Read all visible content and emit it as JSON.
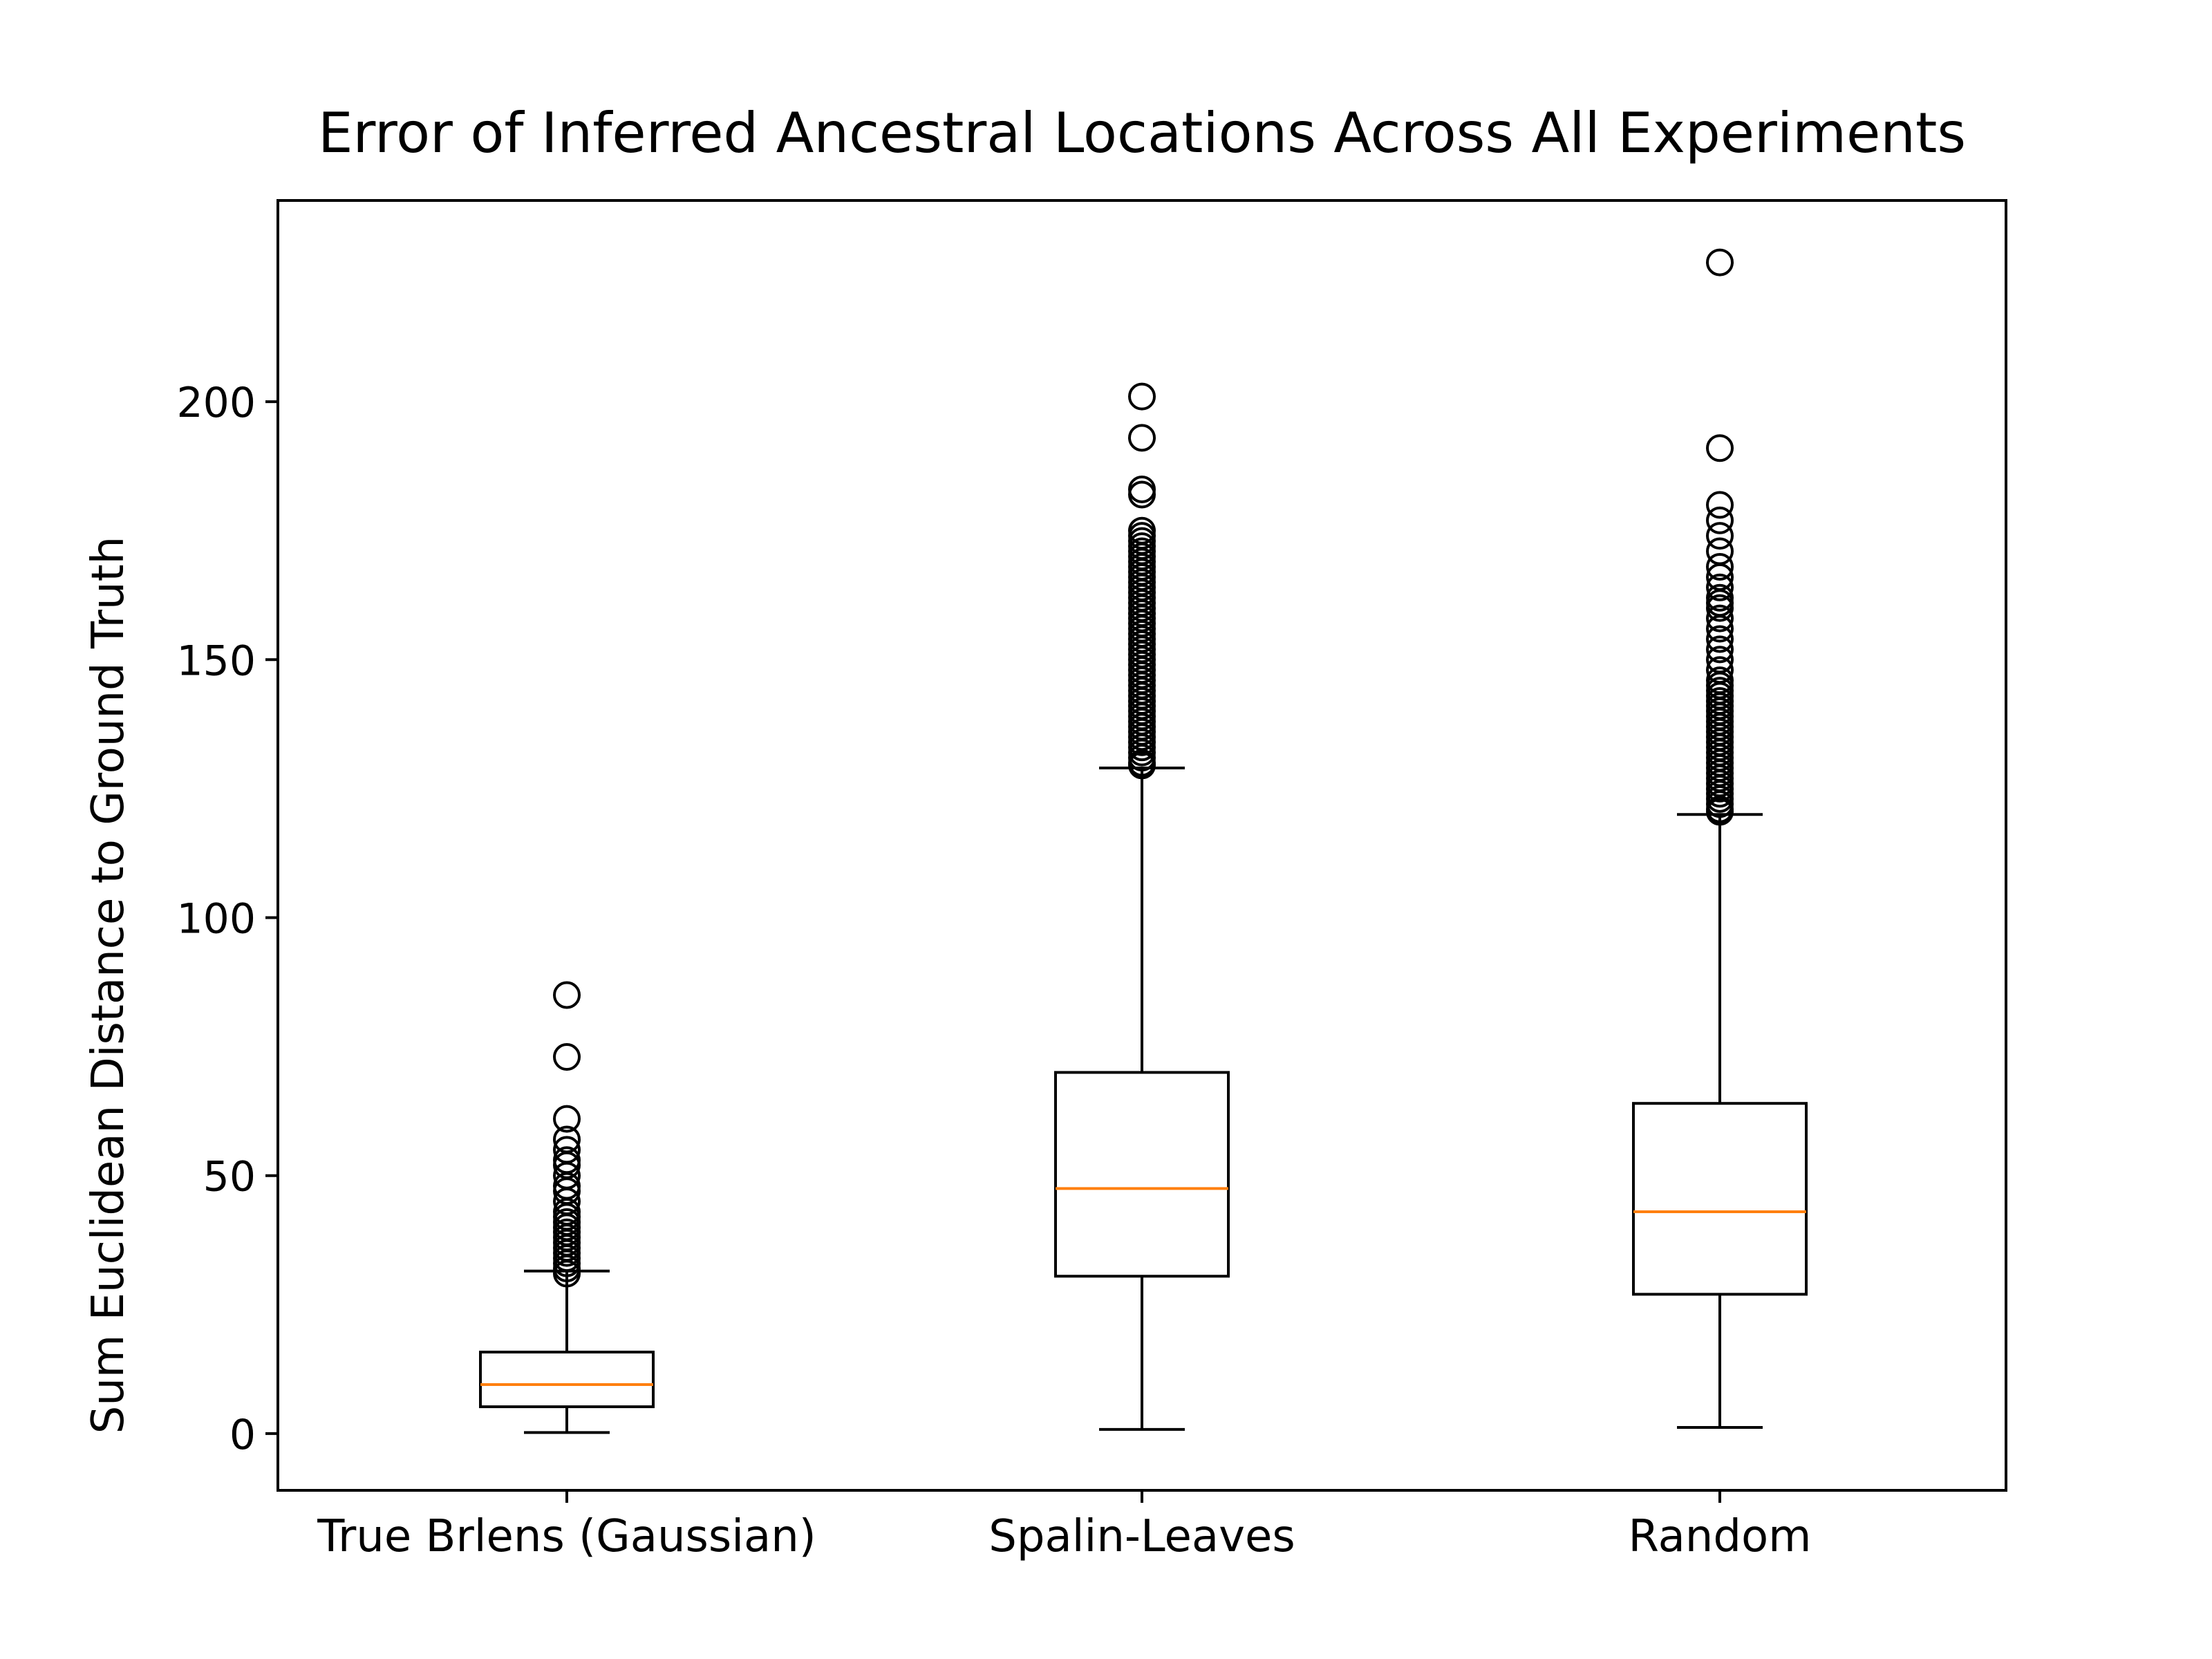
{
  "chart_data": {
    "type": "box",
    "title": "Error of Inferred Ancestral Locations Across All Experiments",
    "xlabel": "",
    "ylabel": "Sum Euclidean Distance to Ground Truth",
    "ylim": [
      -11,
      239
    ],
    "yticks": [
      0,
      50,
      100,
      150,
      200
    ],
    "ytick_labels": [
      "0",
      "50",
      "100",
      "150",
      "200"
    ],
    "grid": false,
    "legend": "none",
    "colors": {
      "box": "#000000",
      "median": "#ff7f0e",
      "outlier": "#000000"
    },
    "categories": [
      "True Brlens (Gaussian)",
      "Spalin-Leaves",
      "Random"
    ],
    "boxes": [
      {
        "label": "True Brlens (Gaussian)",
        "whisker_low": 0.2,
        "q1": 5.2,
        "median": 9.5,
        "q3": 15.8,
        "whisker_high": 31.5,
        "outliers": [
          31,
          32,
          33,
          34,
          35,
          36,
          37,
          38,
          39,
          40,
          41,
          42,
          43,
          45,
          47,
          48,
          50,
          52,
          53,
          55,
          57,
          61,
          73,
          85
        ]
      },
      {
        "label": "Spalin-Leaves",
        "whisker_low": 0.8,
        "q1": 30.5,
        "median": 47.5,
        "q3": 70,
        "whisker_high": 129,
        "outliers": [
          129.5,
          130,
          131,
          132,
          133,
          134,
          135,
          136,
          137,
          138,
          139,
          140,
          141,
          142,
          143,
          144,
          145,
          146,
          147,
          148,
          149,
          150,
          151,
          152,
          153,
          154,
          155,
          156,
          157,
          158,
          159,
          160,
          161,
          162,
          163,
          164,
          165,
          166,
          167,
          168,
          169,
          170,
          171,
          172,
          173,
          174,
          175,
          182,
          183,
          193,
          201
        ]
      },
      {
        "label": "Random",
        "whisker_low": 1.2,
        "q1": 27,
        "median": 43,
        "q3": 64,
        "whisker_high": 120,
        "outliers": [
          120.5,
          121,
          122,
          123,
          124,
          125,
          126,
          127,
          128,
          129,
          130,
          131,
          132,
          133,
          134,
          135,
          136,
          137,
          138,
          139,
          140,
          141,
          142,
          143,
          144,
          145,
          146,
          148,
          150,
          152,
          154,
          156,
          158,
          160,
          161,
          162,
          164,
          166,
          168,
          171,
          174,
          177,
          180,
          191,
          227
        ]
      }
    ]
  }
}
